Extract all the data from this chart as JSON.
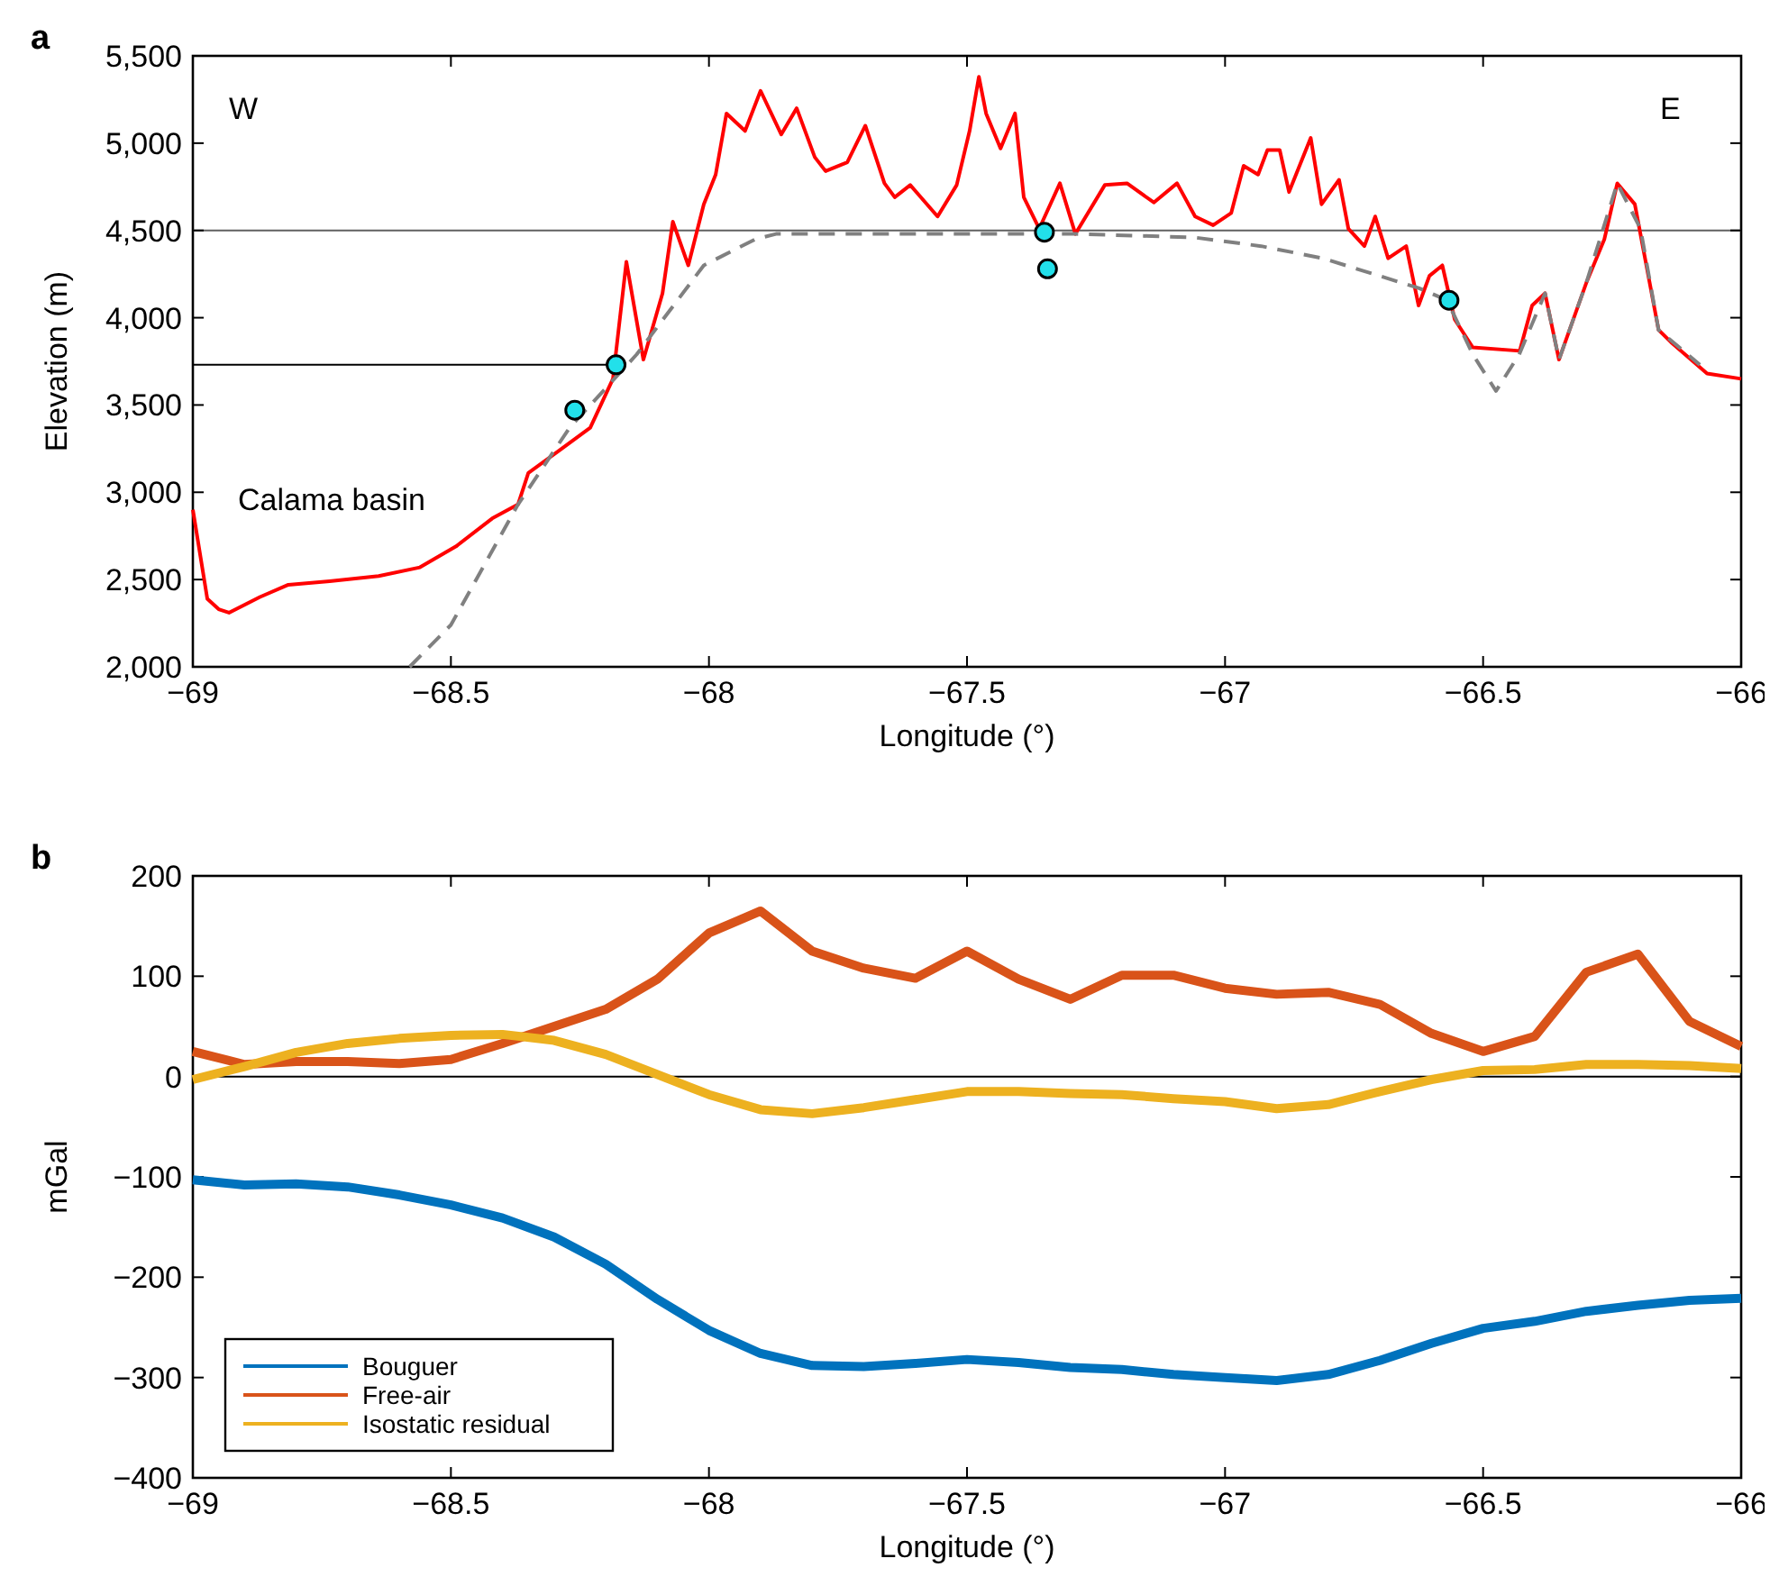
{
  "chart_data": [
    {
      "type": "line",
      "title": "a",
      "xlabel": "Longitude (°)",
      "ylabel": "Elevation (m)",
      "xlim": [
        -69,
        -66
      ],
      "ylim": [
        2000,
        5500
      ],
      "xticks": [
        {
          "value": -69,
          "label": "−69"
        },
        {
          "value": -68.5,
          "label": "−68.5"
        },
        {
          "value": -68,
          "label": "−68"
        },
        {
          "value": -67.5,
          "label": "−67.5"
        },
        {
          "value": -67,
          "label": "−67"
        },
        {
          "value": -66.5,
          "label": "−66.5"
        },
        {
          "value": -66,
          "label": "−66"
        }
      ],
      "yticks": [
        {
          "value": 2000,
          "label": "2,000"
        },
        {
          "value": 2500,
          "label": "2,500"
        },
        {
          "value": 3000,
          "label": "3,000"
        },
        {
          "value": 3500,
          "label": "3,500"
        },
        {
          "value": 4000,
          "label": "4,000"
        },
        {
          "value": 4500,
          "label": "4,500"
        },
        {
          "value": 5000,
          "label": "5,000"
        },
        {
          "value": 5500,
          "label": "5,500"
        }
      ],
      "ref_lines": [
        {
          "axis": "y",
          "value": 4500,
          "color": "#606060"
        }
      ],
      "annotations": [
        "W",
        "E",
        "Calama basin"
      ],
      "series": [
        {
          "color": "#ff0000",
          "x": [
            -69,
            -68.972,
            -68.95,
            -68.93,
            -68.87,
            -68.815,
            -68.735,
            -68.64,
            -68.56,
            -68.49,
            -68.42,
            -68.37,
            -68.35,
            -68.29,
            -68.23,
            -68.186,
            -68.16,
            -68.127,
            -68.09,
            -68.07,
            -68.04,
            -68.01,
            -67.987,
            -67.966,
            -67.93,
            -67.9,
            -67.86,
            -67.83,
            -67.795,
            -67.774,
            -67.732,
            -67.697,
            -67.66,
            -67.64,
            -67.61,
            -67.557,
            -67.52,
            -67.495,
            -67.477,
            -67.463,
            -67.435,
            -67.407,
            -67.39,
            -67.36,
            -67.32,
            -67.29,
            -67.233,
            -67.19,
            -67.138,
            -67.093,
            -67.058,
            -67.023,
            -66.988,
            -66.964,
            -66.936,
            -66.918,
            -66.894,
            -66.876,
            -66.834,
            -66.813,
            -66.779,
            -66.761,
            -66.73,
            -66.709,
            -66.684,
            -66.649,
            -66.625,
            -66.604,
            -66.579,
            -66.555,
            -66.52,
            -66.429,
            -66.405,
            -66.38,
            -66.353,
            -66.3,
            -66.265,
            -66.24,
            -66.206,
            -66.16,
            -66.136,
            -66.066,
            -66
          ],
          "values": [
            2900,
            2390,
            2330,
            2310,
            2400,
            2470,
            2490,
            2520,
            2570,
            2690,
            2850,
            2930,
            3110,
            3240,
            3370,
            3650,
            4320,
            3760,
            4140,
            4550,
            4300,
            4650,
            4820,
            5170,
            5070,
            5300,
            5050,
            5200,
            4920,
            4840,
            4890,
            5100,
            4770,
            4690,
            4760,
            4580,
            4760,
            5070,
            5380,
            5170,
            4970,
            5170,
            4690,
            4510,
            4770,
            4480,
            4760,
            4770,
            4660,
            4770,
            4580,
            4530,
            4600,
            4870,
            4820,
            4960,
            4960,
            4720,
            5030,
            4650,
            4790,
            4510,
            4410,
            4580,
            4340,
            4410,
            4070,
            4240,
            4300,
            3990,
            3830,
            3810,
            4070,
            4140,
            3760,
            4200,
            4450,
            4770,
            4650,
            3930,
            3860,
            3680,
            3650
          ]
        },
        {
          "color": "#808080",
          "line_style": "dashed",
          "x": [
            -68.58,
            -68.5,
            -68.37,
            -68.27,
            -68.14,
            -68.01,
            -67.91,
            -67.87,
            -67.29,
            -67.06,
            -66.93,
            -66.81,
            -66.625,
            -66.57,
            -66.52,
            -66.475,
            -66.43,
            -66.38,
            -66.353,
            -66.3,
            -66.24,
            -66.195,
            -66.16,
            -66.08
          ],
          "values": [
            2000,
            2240,
            2930,
            3370,
            3790,
            4300,
            4450,
            4480,
            4480,
            4460,
            4410,
            4340,
            4170,
            4100,
            3790,
            3580,
            3790,
            4140,
            3760,
            4200,
            4770,
            4510,
            3930,
            3730
          ]
        },
        {
          "color": "#000000",
          "x": [
            -69,
            -68.18
          ],
          "values": [
            3730,
            3730
          ]
        },
        {
          "type": "scatter",
          "color": "#22e0ea",
          "marker": "circle",
          "x": [
            -68.26,
            -68.18,
            -67.35,
            -67.344,
            -66.566
          ],
          "values": [
            3470,
            3730,
            4490,
            4280,
            4100
          ]
        }
      ]
    },
    {
      "type": "line",
      "title": "b",
      "xlabel": "Longitude (°)",
      "ylabel": "mGal",
      "xlim": [
        -69,
        -66
      ],
      "ylim": [
        -400,
        200
      ],
      "legend": "bottom left",
      "xticks": [
        {
          "value": -69,
          "label": "−69"
        },
        {
          "value": -68.5,
          "label": "−68.5"
        },
        {
          "value": -68,
          "label": "−68"
        },
        {
          "value": -67.5,
          "label": "−67.5"
        },
        {
          "value": -67,
          "label": "−67"
        },
        {
          "value": -66.5,
          "label": "−66.5"
        },
        {
          "value": -66,
          "label": "−66"
        }
      ],
      "yticks": [
        {
          "value": -400,
          "label": "−400"
        },
        {
          "value": -300,
          "label": "−300"
        },
        {
          "value": -200,
          "label": "−200"
        },
        {
          "value": -100,
          "label": "−100"
        },
        0,
        100,
        200
      ],
      "ref_lines": [
        {
          "axis": "y",
          "value": 0,
          "color": "#000000"
        }
      ],
      "x": [
        -69,
        -68.9,
        -68.8,
        -68.7,
        -68.6,
        -68.5,
        -68.4,
        -68.3,
        -68.2,
        -68.1,
        -68,
        -67.9,
        -67.8,
        -67.7,
        -67.6,
        -67.5,
        -67.4,
        -67.3,
        -67.2,
        -67.1,
        -67,
        -66.9,
        -66.8,
        -66.7,
        -66.6,
        -66.5,
        -66.4,
        -66.3,
        -66.2,
        -66.1,
        -66
      ],
      "series": [
        {
          "name": "Bouguer",
          "color": "#0072bd",
          "values": [
            -103,
            -108,
            -107,
            -110,
            -118,
            -128,
            -141,
            -160,
            -187,
            -222,
            -253,
            -276,
            -288,
            -289,
            -286,
            -282,
            -285,
            -290,
            -292,
            -297,
            -300,
            -303,
            -297,
            -283,
            -266,
            -251,
            -244,
            -234,
            -228,
            -223,
            -221
          ]
        },
        {
          "name": "Free-air",
          "color": "#d95319",
          "values": [
            25,
            12,
            15,
            15,
            13,
            17,
            33,
            50,
            67,
            97,
            143,
            165,
            125,
            108,
            98,
            125,
            97,
            77,
            101,
            101,
            88,
            82,
            84,
            72,
            43,
            25,
            40,
            104,
            122,
            55,
            30
          ]
        },
        {
          "name": "Isostatic residual",
          "color": "#edb120",
          "values": [
            -3,
            10,
            24,
            33,
            38,
            41,
            42,
            36,
            22,
            2,
            -18,
            -33,
            -37,
            -31,
            -23,
            -15,
            -15,
            -17,
            -18,
            -22,
            -25,
            -32,
            -28,
            -15,
            -3,
            6,
            7,
            12,
            12,
            11,
            8
          ]
        }
      ]
    }
  ]
}
